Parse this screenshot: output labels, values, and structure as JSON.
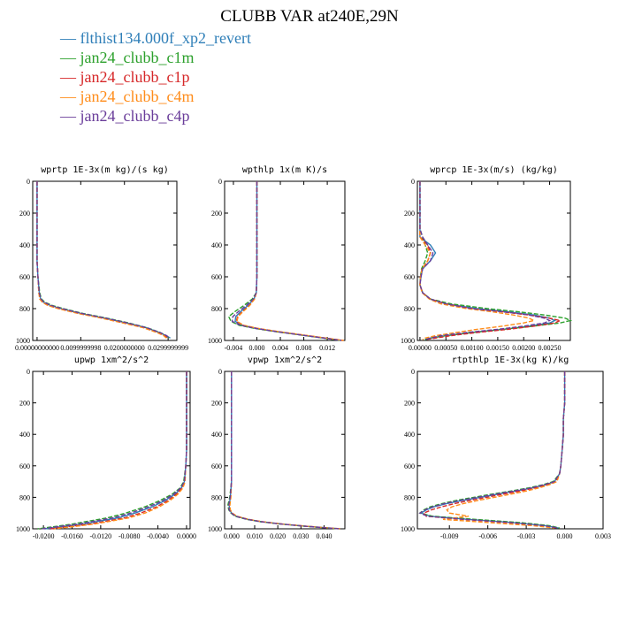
{
  "title": "CLUBB VAR at240E,29N",
  "legend": [
    {
      "label": "flthist134.000f_xp2_revert",
      "color": "#2f7fb8"
    },
    {
      "label": "jan24_clubb_c1m",
      "color": "#2ca02c"
    },
    {
      "label": "jan24_clubb_c1p",
      "color": "#d62728"
    },
    {
      "label": "jan24_clubb_c4m",
      "color": "#ff8c1a"
    },
    {
      "label": "jan24_clubb_c4p",
      "color": "#6a3d9a"
    }
  ],
  "chart_data": [
    {
      "type": "line",
      "title": "wprtp 1E-3x(m kg)/(s kg)",
      "xlim": [
        -0.001,
        0.032
      ],
      "ylim": [
        1000,
        0
      ],
      "xticks": [
        0.0,
        0.01,
        0.02,
        0.03
      ],
      "xtick_labels": [
        "0.00000000000",
        "0.0099999998",
        "0.0200000000",
        "0.0299999999"
      ],
      "yticks": [
        0,
        200,
        400,
        600,
        800,
        1000
      ],
      "y": [
        0,
        100,
        200,
        300,
        400,
        500,
        600,
        700,
        740,
        760,
        780,
        800,
        830,
        860,
        890,
        920,
        950,
        970,
        985
      ],
      "series": [
        {
          "values": [
            0,
            0,
            0,
            0,
            0,
            0,
            0.0002,
            0.0005,
            0.0008,
            0.0015,
            0.003,
            0.0055,
            0.01,
            0.0155,
            0.0205,
            0.025,
            0.028,
            0.0295,
            0.0305
          ]
        },
        {
          "values": [
            0,
            0,
            0,
            0,
            0,
            0,
            0.0002,
            0.0006,
            0.001,
            0.0018,
            0.0035,
            0.006,
            0.0105,
            0.016,
            0.021,
            0.0252,
            0.0282,
            0.0296,
            0.0302
          ]
        },
        {
          "values": [
            0,
            0,
            0,
            0,
            0,
            0,
            0.0002,
            0.0004,
            0.0007,
            0.0013,
            0.0026,
            0.005,
            0.0095,
            0.015,
            0.0198,
            0.0245,
            0.0276,
            0.0292,
            0.0298
          ]
        },
        {
          "values": [
            0,
            0,
            0,
            0,
            0,
            0,
            0.0002,
            0.0004,
            0.0006,
            0.0012,
            0.0024,
            0.0048,
            0.0093,
            0.0148,
            0.0196,
            0.0243,
            0.0274,
            0.029,
            0.0296
          ]
        },
        {
          "values": [
            0,
            0,
            0,
            0,
            0,
            0,
            0.0002,
            0.0005,
            0.0009,
            0.0016,
            0.0032,
            0.0057,
            0.0102,
            0.0157,
            0.0207,
            0.0251,
            0.0281,
            0.0297,
            0.0303
          ]
        }
      ]
    },
    {
      "type": "line",
      "title": "wpthlp 1x(m K)/s",
      "xlim": [
        -0.0055,
        0.015
      ],
      "ylim": [
        1000,
        0
      ],
      "xticks": [
        -0.004,
        0.0,
        0.004,
        0.008,
        0.012
      ],
      "xtick_labels": [
        "-0.004",
        "0.000",
        "0.004",
        "0.008",
        "0.012"
      ],
      "yticks": [
        0,
        200,
        400,
        600,
        800,
        1000
      ],
      "y": [
        0,
        100,
        200,
        300,
        400,
        500,
        600,
        700,
        740,
        780,
        820,
        850,
        880,
        905,
        925,
        945,
        960,
        975,
        990,
        1000
      ],
      "series": [
        {
          "values": [
            0,
            0,
            0,
            0,
            0,
            0,
            0,
            -0.0001,
            -0.0005,
            -0.0015,
            -0.0028,
            -0.0036,
            -0.0037,
            -0.0025,
            0.0,
            0.0035,
            0.0065,
            0.0095,
            0.0125,
            0.0145
          ]
        },
        {
          "values": [
            0,
            0,
            0,
            0,
            0,
            0,
            0,
            -0.0001,
            -0.0008,
            -0.0022,
            -0.0038,
            -0.0048,
            -0.0044,
            -0.003,
            -0.0003,
            0.0032,
            0.0063,
            0.0093,
            0.0123,
            0.0143
          ]
        },
        {
          "values": [
            0,
            0,
            0,
            0,
            0,
            0,
            0,
            -0.0001,
            -0.0004,
            -0.0013,
            -0.0025,
            -0.0033,
            -0.0035,
            -0.0023,
            0.0002,
            0.0037,
            0.0067,
            0.0097,
            0.0127,
            0.0147
          ]
        },
        {
          "values": [
            0,
            0,
            0,
            0,
            0,
            0,
            0,
            -0.0001,
            -0.0004,
            -0.0012,
            -0.0024,
            -0.0032,
            -0.0034,
            -0.0022,
            0.0003,
            0.0038,
            0.0068,
            0.0098,
            0.0128,
            0.0148
          ]
        },
        {
          "values": [
            0,
            0,
            0,
            0,
            0,
            0,
            0,
            -0.0001,
            -0.0006,
            -0.0018,
            -0.0032,
            -0.0041,
            -0.0042,
            -0.0028,
            -0.0001,
            0.0034,
            0.0064,
            0.0094,
            0.0124,
            0.0144
          ]
        }
      ]
    },
    {
      "type": "line",
      "title": "wprcp 1E-3x(m/s) (kg/kg)",
      "xlim": [
        -5e-05,
        0.0029
      ],
      "ylim": [
        1000,
        0
      ],
      "xticks": [
        0.0,
        0.0005,
        0.001,
        0.0015,
        0.002,
        0.0025
      ],
      "xtick_labels": [
        "0.00000",
        "0.00050",
        "0.00100",
        "0.00150",
        "0.00200",
        "0.00250"
      ],
      "yticks": [
        0,
        200,
        400,
        600,
        800,
        1000
      ],
      "y": [
        0,
        100,
        200,
        300,
        350,
        400,
        450,
        500,
        550,
        600,
        650,
        700,
        740,
        770,
        800,
        820,
        840,
        860,
        875,
        890,
        910,
        930,
        950,
        970,
        985,
        995
      ],
      "series": [
        {
          "values": [
            0,
            0,
            0,
            0,
            0,
            0.0002,
            0.0003,
            0.0002,
            5e-05,
            2e-05,
            0,
            5e-05,
            0.0002,
            0.0005,
            0.0011,
            0.0017,
            0.0022,
            0.0025,
            0.0026,
            0.0025,
            0.0021,
            0.0016,
            0.001,
            0.0005,
            0.0002,
            0.0001
          ]
        },
        {
          "values": [
            0,
            0,
            0,
            0,
            5e-05,
            0.0001,
            0.00015,
            0.0001,
            3e-05,
            1e-05,
            0,
            5e-05,
            0.0002,
            0.0006,
            0.0013,
            0.0019,
            0.0024,
            0.0028,
            0.0029,
            0.0027,
            0.0022,
            0.0016,
            0.001,
            0.0005,
            0.0002,
            0.0001
          ]
        },
        {
          "values": [
            0,
            0,
            0,
            0,
            0,
            0.00015,
            0.0002,
            0.00015,
            4e-05,
            1e-05,
            0,
            5e-05,
            0.0002,
            0.0005,
            0.001,
            0.0016,
            0.0021,
            0.0025,
            0.0027,
            0.0026,
            0.0022,
            0.0017,
            0.0011,
            0.0006,
            0.0003,
            0.0001
          ]
        },
        {
          "values": [
            0,
            0,
            0,
            0,
            0,
            0.0001,
            0.0002,
            0.00015,
            4e-05,
            1e-05,
            0,
            4e-05,
            0.00018,
            0.0004,
            0.0009,
            0.0014,
            0.0018,
            0.0021,
            0.0022,
            0.002,
            0.0016,
            0.0011,
            0.0007,
            0.0003,
            0.0001,
            5e-05
          ]
        },
        {
          "values": [
            0,
            0,
            0,
            0,
            5e-05,
            0.00015,
            0.00025,
            0.0002,
            5e-05,
            2e-05,
            0,
            5e-05,
            0.0002,
            0.0005,
            0.001,
            0.0016,
            0.0021,
            0.0024,
            0.0025,
            0.0024,
            0.002,
            0.0015,
            0.0009,
            0.0004,
            0.0002,
            0.0001
          ]
        }
      ]
    },
    {
      "type": "line",
      "title": "upwp 1xm^2/s^2",
      "xlim": [
        -0.0215,
        0.0005
      ],
      "ylim": [
        1000,
        0
      ],
      "xticks": [
        -0.02,
        -0.016,
        -0.012,
        -0.008,
        -0.004,
        0.0
      ],
      "xtick_labels": [
        "-0.0200",
        "-0.0160",
        "-0.0120",
        "-0.0080",
        "-0.0040",
        "0.0000"
      ],
      "yticks": [
        0,
        200,
        400,
        600,
        800,
        1000
      ],
      "y": [
        0,
        100,
        200,
        300,
        400,
        500,
        600,
        700,
        740,
        780,
        820,
        860,
        900,
        930,
        950,
        970,
        985,
        1000
      ],
      "series": [
        {
          "values": [
            0,
            0,
            0,
            0,
            0,
            0,
            -0.0001,
            -0.0003,
            -0.0007,
            -0.0016,
            -0.003,
            -0.0048,
            -0.0072,
            -0.0095,
            -0.012,
            -0.0145,
            -0.017,
            -0.0198
          ]
        },
        {
          "values": [
            0,
            0,
            0,
            0,
            0,
            0,
            -0.0001,
            -0.0004,
            -0.0009,
            -0.002,
            -0.0037,
            -0.0058,
            -0.0085,
            -0.011,
            -0.0135,
            -0.016,
            -0.0183,
            -0.0208
          ]
        },
        {
          "values": [
            0,
            0,
            0,
            0,
            0,
            0,
            -0.0001,
            -0.0003,
            -0.0006,
            -0.0014,
            -0.0026,
            -0.0042,
            -0.0064,
            -0.0086,
            -0.011,
            -0.0136,
            -0.0162,
            -0.019
          ]
        },
        {
          "values": [
            0,
            0,
            0,
            0,
            0,
            0,
            -0.0001,
            -0.0002,
            -0.0005,
            -0.0012,
            -0.0023,
            -0.0038,
            -0.0058,
            -0.008,
            -0.0104,
            -0.013,
            -0.0156,
            -0.0185
          ]
        },
        {
          "values": [
            0,
            0,
            0,
            0,
            0,
            0,
            -0.0001,
            -0.0003,
            -0.0008,
            -0.0018,
            -0.0033,
            -0.0053,
            -0.0078,
            -0.0102,
            -0.0127,
            -0.0152,
            -0.0177,
            -0.0203
          ]
        }
      ]
    },
    {
      "type": "line",
      "title": "vpwp 1xm^2/s^2",
      "xlim": [
        -0.003,
        0.049
      ],
      "ylim": [
        1000,
        0
      ],
      "xticks": [
        0.0,
        0.01,
        0.02,
        0.03,
        0.04
      ],
      "xtick_labels": [
        "0.000",
        "0.010",
        "0.020",
        "0.030",
        "0.040"
      ],
      "yticks": [
        0,
        200,
        400,
        600,
        800,
        1000
      ],
      "y": [
        0,
        100,
        200,
        300,
        400,
        500,
        600,
        700,
        800,
        850,
        880,
        900,
        920,
        940,
        955,
        970,
        985,
        1000
      ],
      "series": [
        {
          "values": [
            0,
            0,
            0,
            0,
            0,
            0,
            0,
            0,
            -0.0005,
            -0.001,
            -0.0008,
            0.0,
            0.002,
            0.007,
            0.013,
            0.022,
            0.033,
            0.047
          ]
        },
        {
          "values": [
            0,
            0,
            0,
            0,
            0,
            0,
            0,
            0,
            -0.0008,
            -0.0016,
            -0.0012,
            -0.0003,
            0.0015,
            0.0065,
            0.0125,
            0.0215,
            0.0325,
            0.0465
          ]
        },
        {
          "values": [
            0,
            0,
            0,
            0,
            0,
            0,
            0,
            0,
            -0.0004,
            -0.0009,
            -0.0006,
            0.0002,
            0.0022,
            0.0072,
            0.0132,
            0.0222,
            0.0332,
            0.0472
          ]
        },
        {
          "values": [
            0,
            0,
            0,
            0,
            0,
            0,
            0,
            0,
            -0.0003,
            -0.0007,
            -0.0005,
            0.0003,
            0.0023,
            0.0073,
            0.0133,
            0.0223,
            0.0333,
            0.0473
          ]
        },
        {
          "values": [
            0,
            0,
            0,
            0,
            0,
            0,
            0,
            0,
            -0.0006,
            -0.0012,
            -0.001,
            -0.0001,
            0.0018,
            0.0068,
            0.0128,
            0.0218,
            0.0328,
            0.0468
          ]
        }
      ]
    },
    {
      "type": "line",
      "title": "rtpthlp 1E-3x(kg K)/kg",
      "xlim": [
        -0.0115,
        0.003
      ],
      "ylim": [
        1000,
        0
      ],
      "xticks": [
        -0.009,
        -0.006,
        -0.003,
        0.0,
        0.003
      ],
      "xtick_labels": [
        "-0.009",
        "-0.006",
        "-0.003",
        "0.000",
        "0.003"
      ],
      "yticks": [
        0,
        200,
        400,
        600,
        800,
        1000
      ],
      "y": [
        0,
        100,
        200,
        300,
        400,
        500,
        600,
        650,
        700,
        720,
        740,
        760,
        780,
        800,
        820,
        840,
        860,
        880,
        900,
        920,
        940,
        960,
        980,
        995
      ],
      "series": [
        {
          "values": [
            0,
            0,
            0,
            -0.0001,
            -0.0001,
            -0.0002,
            -0.0003,
            -0.0004,
            -0.0008,
            -0.0015,
            -0.0025,
            -0.0038,
            -0.0052,
            -0.0066,
            -0.008,
            -0.0092,
            -0.0102,
            -0.0108,
            -0.0112,
            -0.0105,
            -0.0075,
            -0.004,
            -0.0015,
            -0.0005
          ]
        },
        {
          "values": [
            0,
            0,
            0,
            -0.0001,
            -0.0001,
            -0.0002,
            -0.0003,
            -0.0004,
            -0.0009,
            -0.0017,
            -0.0028,
            -0.0042,
            -0.0057,
            -0.0071,
            -0.0085,
            -0.0096,
            -0.0105,
            -0.011,
            -0.0113,
            -0.0103,
            -0.007,
            -0.0035,
            -0.0012,
            -0.0004
          ]
        },
        {
          "values": [
            0,
            0,
            0,
            -0.0001,
            -0.0001,
            -0.0002,
            -0.0003,
            -0.0004,
            -0.0007,
            -0.0014,
            -0.0023,
            -0.0035,
            -0.0048,
            -0.0061,
            -0.0074,
            -0.0086,
            -0.0096,
            -0.0104,
            -0.011,
            -0.0108,
            -0.008,
            -0.0045,
            -0.0018,
            -0.0006
          ]
        },
        {
          "values": [
            0,
            0,
            0,
            -0.0001,
            -0.0001,
            -0.0002,
            -0.0003,
            -0.0004,
            -0.0006,
            -0.0012,
            -0.002,
            -0.003,
            -0.0042,
            -0.0055,
            -0.0068,
            -0.0079,
            -0.0088,
            -0.0092,
            -0.009,
            -0.0075,
            -0.0095,
            -0.006,
            -0.0025,
            -0.0008
          ]
        },
        {
          "values": [
            0,
            0,
            0,
            -0.0001,
            -0.0001,
            -0.0002,
            -0.0003,
            -0.0004,
            -0.0008,
            -0.0016,
            -0.0026,
            -0.004,
            -0.0054,
            -0.0068,
            -0.0082,
            -0.0094,
            -0.0103,
            -0.0109,
            -0.0113,
            -0.0107,
            -0.0078,
            -0.0042,
            -0.0016,
            -0.0005
          ]
        }
      ]
    }
  ]
}
